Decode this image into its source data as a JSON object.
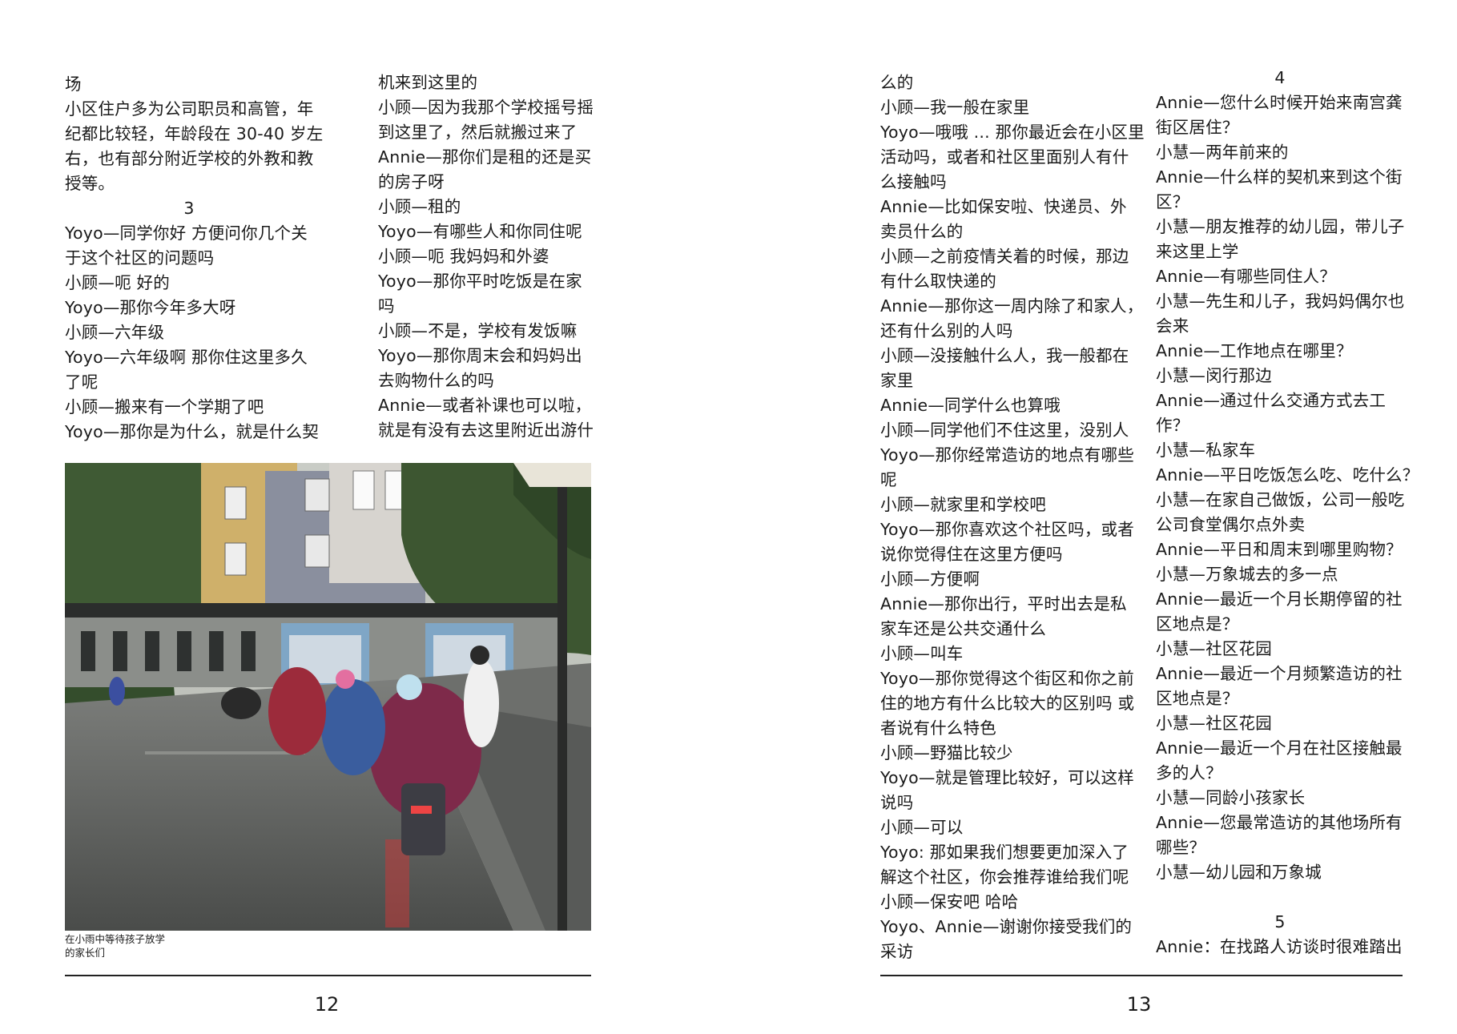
{
  "left_page": {
    "col1": [
      {
        "text": "场"
      },
      {
        "text": "小区住户多为公司职员和高管，年"
      },
      {
        "text": "纪都比较轻，年龄段在 30-40 岁左"
      },
      {
        "text": "右，也有部分附近学校的外教和教"
      },
      {
        "text": "授等。"
      },
      {
        "text": "3",
        "num": true
      },
      {
        "text": "Yoyo—同学你好 方便问你几个关"
      },
      {
        "text": "于这个社区的问题吗"
      },
      {
        "text": "小顾—呃 好的"
      },
      {
        "text": "Yoyo—那你今年多大呀"
      },
      {
        "text": "小顾—六年级"
      },
      {
        "text": "Yoyo—六年级啊 那你住这里多久"
      },
      {
        "text": "了呢"
      },
      {
        "text": "小顾—搬来有一个学期了吧"
      },
      {
        "text": "Yoyo—那你是为什么，就是什么契"
      }
    ],
    "col2": [
      {
        "text": "机来到这里的"
      },
      {
        "text": "小顾—因为我那个学校摇号摇"
      },
      {
        "text": "到这里了，然后就搬过来了"
      },
      {
        "text": "Annie—那你们是租的还是买"
      },
      {
        "text": "的房子呀"
      },
      {
        "text": "小顾—租的"
      },
      {
        "text": "Yoyo—有哪些人和你同住呢"
      },
      {
        "text": "小顾—呃 我妈妈和外婆"
      },
      {
        "text": "Yoyo—那你平时吃饭是在家"
      },
      {
        "text": "吗"
      },
      {
        "text": "小顾—不是，学校有发饭嘛"
      },
      {
        "text": "Yoyo—那你周末会和妈妈出"
      },
      {
        "text": "去购物什么的吗"
      },
      {
        "text": "Annie—或者补课也可以啦，"
      },
      {
        "text": "就是有没有去这里附近出游什"
      }
    ],
    "caption_lines": [
      "在小雨中等待孩子放学",
      "的家长们"
    ],
    "page_number": "12"
  },
  "right_page": {
    "col3": [
      {
        "text": "么的"
      },
      {
        "text": "小顾—我一般在家里"
      },
      {
        "text": "Yoyo—哦哦 ... 那你最近会在小区里"
      },
      {
        "text": "活动吗，或者和社区里面别人有什"
      },
      {
        "text": "么接触吗"
      },
      {
        "text": "Annie—比如保安啦、快递员、外"
      },
      {
        "text": "卖员什么的"
      },
      {
        "text": "小顾—之前疫情关着的时候，那边"
      },
      {
        "text": "有什么取快递的"
      },
      {
        "text": "Annie—那你这一周内除了和家人，"
      },
      {
        "text": "还有什么别的人吗"
      },
      {
        "text": "小顾—没接触什么人，我一般都在"
      },
      {
        "text": "家里"
      },
      {
        "text": "Annie—同学什么也算哦"
      },
      {
        "text": "小顾—同学他们不住这里，没别人"
      },
      {
        "text": "Yoyo—那你经常造访的地点有哪些"
      },
      {
        "text": "呢"
      },
      {
        "text": "小顾—就家里和学校吧"
      },
      {
        "text": "Yoyo—那你喜欢这个社区吗，或者"
      },
      {
        "text": "说你觉得住在这里方便吗"
      },
      {
        "text": "小顾—方便啊"
      },
      {
        "text": "Annie—那你出行，平时出去是私"
      },
      {
        "text": "家车还是公共交通什么"
      },
      {
        "text": "小顾—叫车"
      },
      {
        "text": "Yoyo—那你觉得这个街区和你之前"
      },
      {
        "text": "住的地方有什么比较大的区别吗 或"
      },
      {
        "text": "者说有什么特色"
      },
      {
        "text": "小顾—野猫比较少"
      },
      {
        "text": "Yoyo—就是管理比较好，可以这样"
      },
      {
        "text": "说吗"
      },
      {
        "text": "小顾—可以"
      },
      {
        "text": "Yoyo: 那如果我们想要更加深入了"
      },
      {
        "text": "解这个社区，你会推荐谁给我们呢"
      },
      {
        "text": "小顾—保安吧 哈哈"
      },
      {
        "text": "Yoyo、Annie—谢谢你接受我们的"
      },
      {
        "text": "采访"
      }
    ],
    "col4": [
      {
        "text": "4",
        "num": true
      },
      {
        "text": "Annie—您什么时候开始来南宫龚"
      },
      {
        "text": "街区居住？"
      },
      {
        "text": "小慧—两年前来的"
      },
      {
        "text": "Annie—什么样的契机来到这个街"
      },
      {
        "text": "区？"
      },
      {
        "text": "小慧—朋友推荐的幼儿园，带儿子"
      },
      {
        "text": "来这里上学"
      },
      {
        "text": "Annie—有哪些同住人？"
      },
      {
        "text": "小慧—先生和儿子，我妈妈偶尔也"
      },
      {
        "text": "会来"
      },
      {
        "text": "Annie—工作地点在哪里？"
      },
      {
        "text": "小慧—闵行那边"
      },
      {
        "text": "Annie—通过什么交通方式去工"
      },
      {
        "text": "作？"
      },
      {
        "text": "小慧—私家车"
      },
      {
        "text": "Annie—平日吃饭怎么吃、吃什么？"
      },
      {
        "text": "小慧—在家自己做饭，公司一般吃"
      },
      {
        "text": "公司食堂偶尔点外卖"
      },
      {
        "text": "Annie—平日和周末到哪里购物？"
      },
      {
        "text": "小慧—万象城去的多一点"
      },
      {
        "text": "Annie—最近一个月长期停留的社"
      },
      {
        "text": "区地点是？"
      },
      {
        "text": "小慧—社区花园"
      },
      {
        "text": "Annie—最近一个月频繁造访的社"
      },
      {
        "text": "区地点是？"
      },
      {
        "text": "小慧—社区花园"
      },
      {
        "text": "Annie—最近一个月在社区接触最"
      },
      {
        "text": "多的人？"
      },
      {
        "text": "小慧—同龄小孩家长"
      },
      {
        "text": "Annie—您最常造访的其他场所有"
      },
      {
        "text": "哪些？"
      },
      {
        "text": "小慧—幼儿园和万象城"
      },
      {
        "text": ""
      },
      {
        "text": "5",
        "num": true
      },
      {
        "text": "Annie：在找路人访谈时很难踏出"
      }
    ],
    "page_number": "13"
  }
}
